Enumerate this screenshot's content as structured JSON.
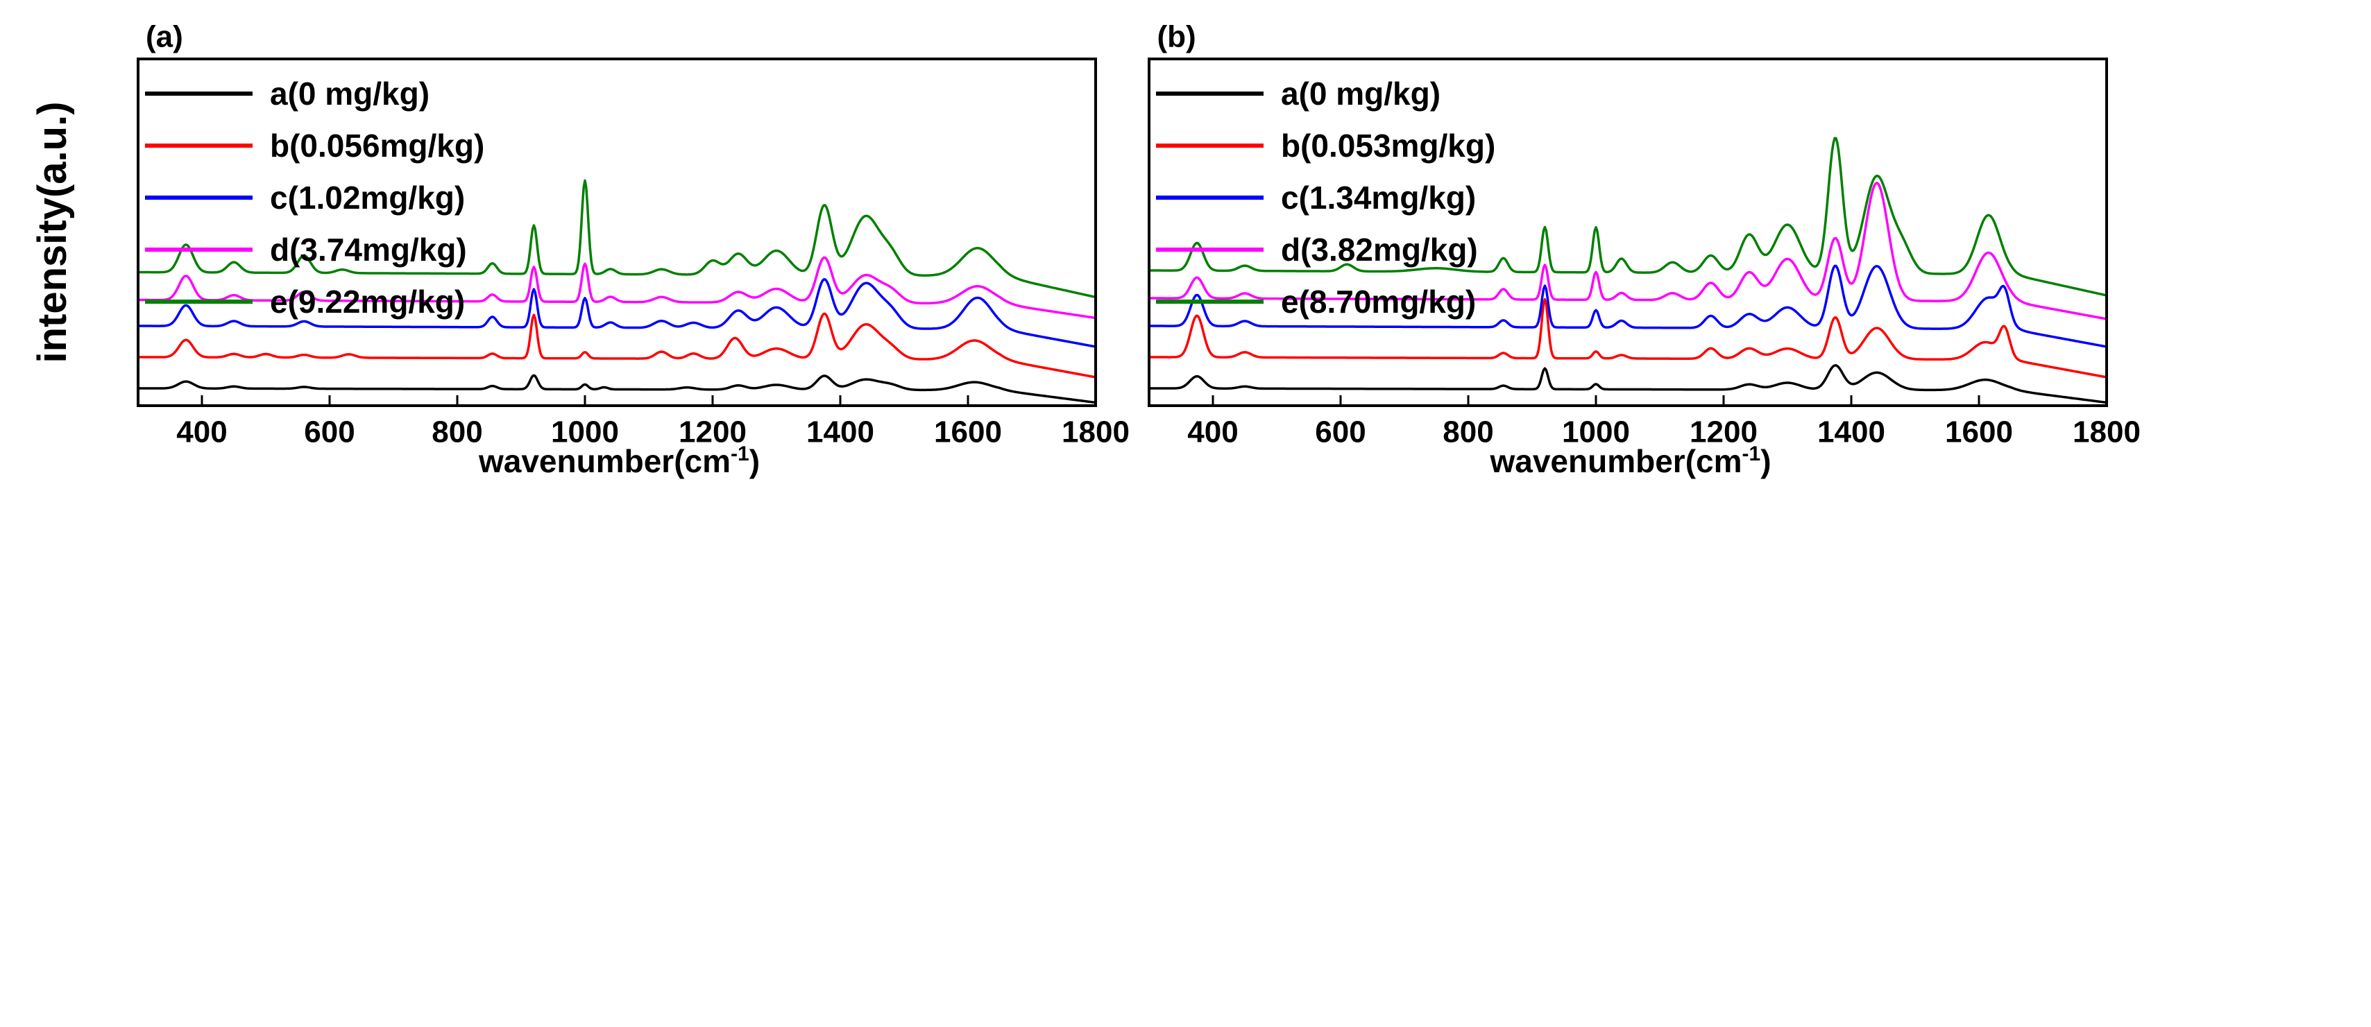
{
  "chart_data": {
    "type": "line",
    "ylabel": "intensity(a.u.)",
    "panels": [
      {
        "label": "(a)",
        "xlabel_main": "wavenumber(cm",
        "xlabel_sup": "-1",
        "xlabel_close": ")",
        "xlim": [
          300,
          1800
        ],
        "ylim": [
          0,
          100
        ],
        "xticks": [
          {
            "value": 400,
            "label": "400"
          },
          {
            "value": 600,
            "label": "600"
          },
          {
            "value": 800,
            "label": "800"
          },
          {
            "value": 1000,
            "label": "1000"
          },
          {
            "value": 1200,
            "label": "1200"
          },
          {
            "value": 1400,
            "label": "1400"
          },
          {
            "value": 1600,
            "label": "1600"
          },
          {
            "value": 1800,
            "label": "1800"
          }
        ],
        "series": [
          {
            "name": "a(0 mg/kg)",
            "color": "#000000",
            "baseline": 5,
            "decay": 0.6,
            "edgeDrop": 3.5,
            "peaks": [
              [
                375,
                2.0,
                12
              ],
              [
                450,
                0.6,
                10
              ],
              [
                560,
                0.5,
                10
              ],
              [
                855,
                0.9,
                7
              ],
              [
                920,
                4.0,
                6
              ],
              [
                1000,
                1.4,
                5
              ],
              [
                1030,
                0.6,
                6
              ],
              [
                1160,
                0.6,
                12
              ],
              [
                1240,
                1.2,
                12
              ],
              [
                1300,
                1.4,
                20
              ],
              [
                1375,
                4.0,
                12
              ],
              [
                1440,
                3.0,
                22
              ],
              [
                1480,
                1.2,
                15
              ],
              [
                1610,
                2.3,
                25
              ]
            ]
          },
          {
            "name": "b(0.056mg/kg)",
            "color": "#ff0000",
            "baseline": 14,
            "decay": 0.8,
            "edgeDrop": 5,
            "peaks": [
              [
                375,
                5.0,
                11
              ],
              [
                450,
                1.0,
                10
              ],
              [
                500,
                1.0,
                10
              ],
              [
                560,
                0.8,
                10
              ],
              [
                630,
                1.0,
                10
              ],
              [
                855,
                1.3,
                7
              ],
              [
                920,
                12.5,
                5
              ],
              [
                1000,
                1.8,
                5
              ],
              [
                1120,
                2.0,
                10
              ],
              [
                1170,
                1.5,
                10
              ],
              [
                1235,
                6.0,
                12
              ],
              [
                1300,
                3.0,
                20
              ],
              [
                1375,
                13.0,
                11
              ],
              [
                1440,
                10.0,
                22
              ],
              [
                1480,
                2.5,
                15
              ],
              [
                1610,
                5.5,
                25
              ]
            ]
          },
          {
            "name": "c(1.02mg/kg)",
            "color": "#0000ff",
            "baseline": 23,
            "decay": 1.0,
            "edgeDrop": 5,
            "peaks": [
              [
                375,
                6.0,
                11
              ],
              [
                450,
                1.5,
                10
              ],
              [
                560,
                1.5,
                10
              ],
              [
                855,
                3.0,
                7
              ],
              [
                920,
                11.0,
                5
              ],
              [
                1000,
                8.5,
                5
              ],
              [
                1040,
                1.5,
                8
              ],
              [
                1120,
                2.0,
                12
              ],
              [
                1170,
                1.5,
                12
              ],
              [
                1240,
                5.0,
                14
              ],
              [
                1300,
                6.0,
                20
              ],
              [
                1375,
                14.0,
                12
              ],
              [
                1440,
                13.0,
                22
              ],
              [
                1480,
                4.0,
                15
              ],
              [
                1615,
                9.0,
                22
              ]
            ]
          },
          {
            "name": "d(3.74mg/kg)",
            "color": "#ff00ff",
            "baseline": 30.5,
            "decay": 1.2,
            "edgeDrop": 4,
            "peaks": [
              [
                375,
                7.0,
                11
              ],
              [
                450,
                1.5,
                10
              ],
              [
                560,
                2.5,
                10
              ],
              [
                855,
                2.0,
                7
              ],
              [
                920,
                10.0,
                5
              ],
              [
                1000,
                11.0,
                5
              ],
              [
                1040,
                1.5,
                8
              ],
              [
                1120,
                1.5,
                12
              ],
              [
                1240,
                3.0,
                14
              ],
              [
                1300,
                4.0,
                20
              ],
              [
                1375,
                13.0,
                12
              ],
              [
                1440,
                8.0,
                22
              ],
              [
                1480,
                3.0,
                15
              ],
              [
                1615,
                5.0,
                25
              ]
            ]
          },
          {
            "name": "e(9.22mg/kg)",
            "color": "#008000",
            "baseline": 38.5,
            "decay": 1.2,
            "edgeDrop": 6,
            "peaks": [
              [
                375,
                8.0,
                11
              ],
              [
                450,
                3.0,
                10
              ],
              [
                560,
                5.0,
                10
              ],
              [
                620,
                1.0,
                10
              ],
              [
                855,
                3.0,
                7
              ],
              [
                920,
                14.0,
                5
              ],
              [
                1000,
                27.0,
                5
              ],
              [
                1040,
                1.5,
                8
              ],
              [
                1120,
                1.5,
                12
              ],
              [
                1200,
                4.0,
                12
              ],
              [
                1240,
                6.0,
                14
              ],
              [
                1300,
                7.0,
                20
              ],
              [
                1375,
                20.0,
                12
              ],
              [
                1440,
                17.0,
                22
              ],
              [
                1480,
                5.0,
                15
              ],
              [
                1615,
                8.0,
                25
              ]
            ]
          }
        ]
      },
      {
        "label": "(b)",
        "xlabel_main": "wavenumber(cm",
        "xlabel_sup": "-1",
        "xlabel_close": ")",
        "xlim": [
          300,
          1800
        ],
        "ylim": [
          0,
          100
        ],
        "xticks": [
          {
            "value": 400,
            "label": "400"
          },
          {
            "value": 600,
            "label": "600"
          },
          {
            "value": 800,
            "label": "800"
          },
          {
            "value": 1000,
            "label": "1000"
          },
          {
            "value": 1200,
            "label": "1200"
          },
          {
            "value": 1400,
            "label": "1400"
          },
          {
            "value": 1600,
            "label": "1600"
          },
          {
            "value": 1800,
            "label": "1800"
          }
        ],
        "series": [
          {
            "name": "a(0 mg/kg)",
            "color": "#000000",
            "baseline": 5,
            "decay": 0.6,
            "edgeDrop": 3.5,
            "peaks": [
              [
                375,
                3.5,
                11
              ],
              [
                450,
                0.6,
                10
              ],
              [
                855,
                1.0,
                7
              ],
              [
                920,
                6.0,
                5
              ],
              [
                1000,
                1.5,
                5
              ],
              [
                1240,
                1.5,
                14
              ],
              [
                1300,
                2.0,
                20
              ],
              [
                1375,
                7.0,
                12
              ],
              [
                1440,
                5.0,
                22
              ],
              [
                1610,
                3.0,
                25
              ]
            ]
          },
          {
            "name": "b(0.053mg/kg)",
            "color": "#ff0000",
            "baseline": 14,
            "decay": 0.8,
            "edgeDrop": 5,
            "peaks": [
              [
                375,
                12.0,
                10
              ],
              [
                450,
                1.5,
                10
              ],
              [
                855,
                1.5,
                7
              ],
              [
                920,
                17.0,
                5
              ],
              [
                1000,
                2.0,
                5
              ],
              [
                1040,
                1.0,
                8
              ],
              [
                1180,
                3.0,
                10
              ],
              [
                1240,
                3.0,
                14
              ],
              [
                1300,
                3.0,
                20
              ],
              [
                1375,
                12.0,
                10
              ],
              [
                1440,
                9.0,
                20
              ],
              [
                1610,
                5.0,
                20
              ],
              [
                1640,
                8.0,
                8
              ]
            ]
          },
          {
            "name": "c(1.34mg/kg)",
            "color": "#0000ff",
            "baseline": 23,
            "decay": 1.0,
            "edgeDrop": 5,
            "peaks": [
              [
                375,
                9.0,
                10
              ],
              [
                450,
                1.5,
                10
              ],
              [
                855,
                2.0,
                7
              ],
              [
                920,
                12.0,
                5
              ],
              [
                1000,
                5.0,
                5
              ],
              [
                1040,
                2.0,
                8
              ],
              [
                1180,
                3.5,
                10
              ],
              [
                1240,
                4.0,
                14
              ],
              [
                1300,
                6.0,
                20
              ],
              [
                1375,
                18.0,
                11
              ],
              [
                1440,
                18.0,
                20
              ],
              [
                1615,
                9.0,
                20
              ],
              [
                1640,
                8.0,
                8
              ]
            ]
          },
          {
            "name": "d(3.82mg/kg)",
            "color": "#ff00ff",
            "baseline": 31,
            "decay": 1.0,
            "edgeDrop": 5,
            "peaks": [
              [
                375,
                6.0,
                10
              ],
              [
                450,
                1.5,
                10
              ],
              [
                855,
                3.0,
                7
              ],
              [
                920,
                10.0,
                5
              ],
              [
                1000,
                8.0,
                5
              ],
              [
                1040,
                2.0,
                8
              ],
              [
                1120,
                2.0,
                12
              ],
              [
                1180,
                5.0,
                12
              ],
              [
                1240,
                8.0,
                14
              ],
              [
                1300,
                12.0,
                20
              ],
              [
                1375,
                18.0,
                12
              ],
              [
                1440,
                34.0,
                18
              ],
              [
                1615,
                14.0,
                20
              ]
            ]
          },
          {
            "name": "e(8.70mg/kg)",
            "color": "#008000",
            "baseline": 39,
            "decay": 1.2,
            "edgeDrop": 6,
            "peaks": [
              [
                375,
                8.0,
                10
              ],
              [
                450,
                1.5,
                10
              ],
              [
                610,
                2.0,
                10
              ],
              [
                750,
                1.0,
                30
              ],
              [
                855,
                4.0,
                7
              ],
              [
                920,
                13.0,
                5
              ],
              [
                1000,
                13.0,
                5
              ],
              [
                1040,
                4.0,
                8
              ],
              [
                1120,
                3.0,
                12
              ],
              [
                1180,
                5.0,
                12
              ],
              [
                1240,
                11.0,
                14
              ],
              [
                1300,
                14.0,
                20
              ],
              [
                1375,
                39.0,
                11
              ],
              [
                1440,
                28.0,
                20
              ],
              [
                1480,
                7.0,
                15
              ],
              [
                1615,
                17.0,
                18
              ]
            ]
          }
        ]
      }
    ]
  }
}
